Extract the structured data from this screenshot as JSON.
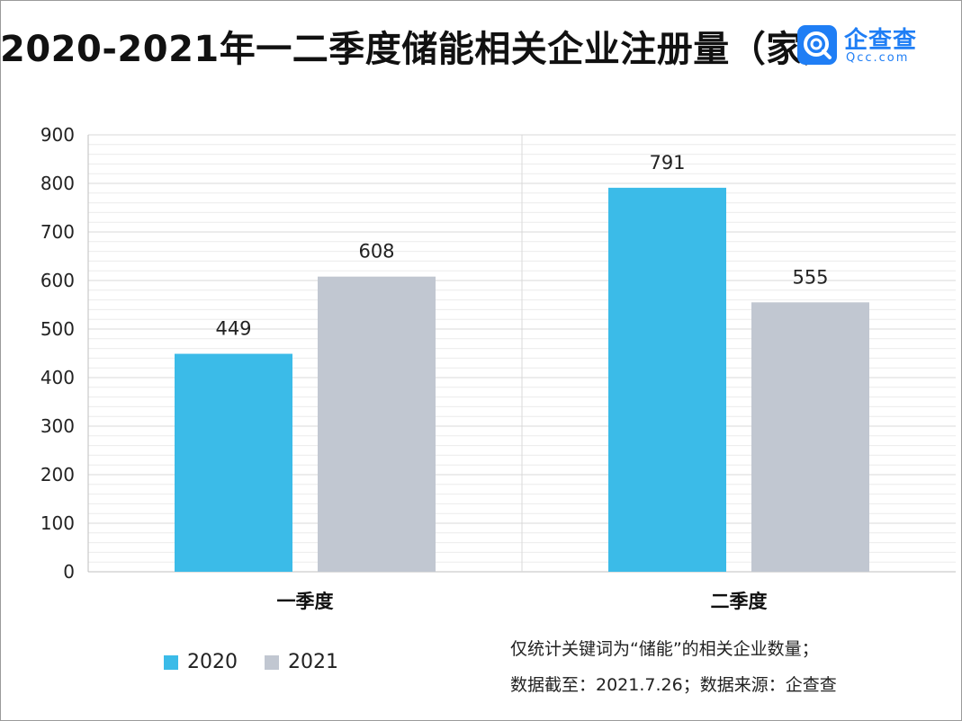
{
  "title": "2020-2021年一二季度储能相关企业注册量（家）",
  "logo": {
    "name": "企查查",
    "sub": "Qcc.com"
  },
  "colors": {
    "s2020": "#3bbbe8",
    "s2021": "#c1c7d1",
    "grid": "#d9d9d9",
    "axis": "#bfbfbf"
  },
  "chart_data": {
    "type": "bar",
    "title": "2020-2021年一二季度储能相关企业注册量（家）",
    "categories": [
      "一季度",
      "二季度"
    ],
    "series": [
      {
        "name": "2020",
        "values": [
          449,
          791
        ]
      },
      {
        "name": "2021",
        "values": [
          608,
          555
        ]
      }
    ],
    "ylim": [
      0,
      900
    ],
    "yticks": [
      0,
      100,
      200,
      300,
      400,
      500,
      600,
      700,
      800,
      900
    ],
    "xlabel": "",
    "ylabel": "",
    "grid": true,
    "legend": "bottom-left",
    "data_labels": true
  },
  "notes": {
    "line1": "仅统计关键词为“储能”的相关企业数量；",
    "line2": "数据截至：2021.7.26；数据来源：企查查"
  }
}
